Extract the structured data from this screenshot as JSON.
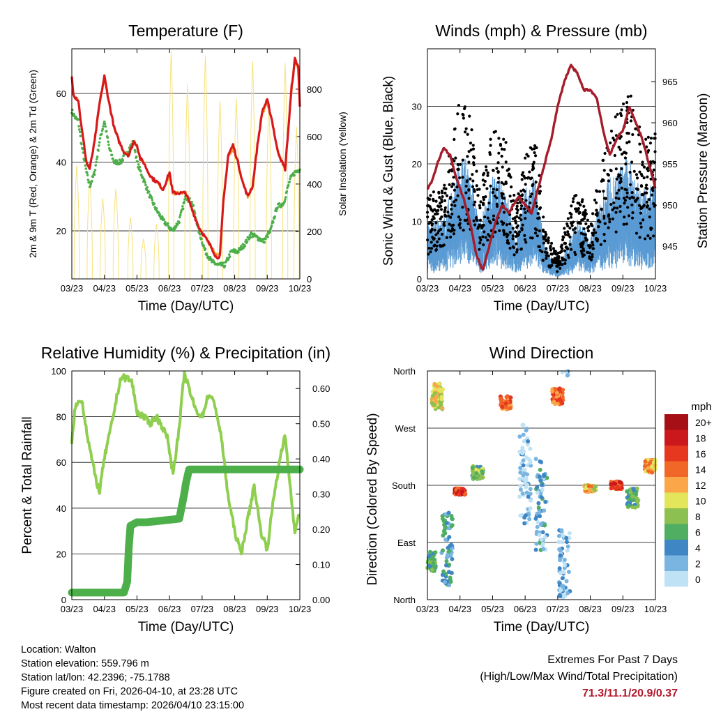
{
  "panels": {
    "temperature": {
      "title": "Temperature (F)",
      "xlabel": "Time (Day/UTC)",
      "ylabel_left": "2m & 9m T (Red, Orange) & 2m Td (Green)",
      "ylabel_right": "Solar Insolation (Yellow)"
    },
    "winds": {
      "title": "Winds (mph) & Pressure (mb)",
      "xlabel": "Time (Day/UTC)",
      "ylabel_left": "Sonic Wind & Gust (Blue, Black)",
      "ylabel_right": "Station Pressure (Maroon)"
    },
    "humidity": {
      "title": "Relative Humidity (%) & Precipitation (in)",
      "xlabel": "Time (Day/UTC)",
      "ylabel_left": "Percent & Total Rainfall"
    },
    "direction": {
      "title": "Wind Direction",
      "xlabel": "Time (Day/UTC)",
      "ylabel_left": "Direction (Colored By Speed)",
      "legend_title": "mph"
    }
  },
  "chart_data": [
    {
      "type": "line",
      "title": "Temperature (F)",
      "x_ticks": [
        "03/23",
        "04/23",
        "05/23",
        "06/23",
        "07/23",
        "08/23",
        "09/23",
        "10/23"
      ],
      "xlim": [
        0,
        7
      ],
      "y_left": {
        "ticks": [
          20,
          40,
          60
        ],
        "lim": [
          6,
          73
        ]
      },
      "y_right": {
        "ticks": [
          0,
          200,
          400,
          600,
          800
        ],
        "lim": [
          0,
          970
        ]
      },
      "series": [
        {
          "name": "2m T",
          "color": "#d7191c",
          "axis": "left",
          "x": [
            0,
            0.05,
            0.1,
            0.2,
            0.3,
            0.45,
            0.55,
            0.7,
            0.85,
            1,
            1.15,
            1.3,
            1.45,
            1.6,
            1.75,
            1.9,
            2.0,
            2.1,
            2.2,
            2.35,
            2.5,
            2.65,
            2.8,
            3.0,
            3.1,
            3.2,
            3.3,
            3.5,
            3.7,
            3.9,
            4.1,
            4.3,
            4.45,
            4.55,
            4.65,
            4.8,
            4.95,
            5.1,
            5.25,
            5.4,
            5.55,
            5.7,
            5.85,
            6.0,
            6.15,
            6.3,
            6.45,
            6.55,
            6.65,
            6.75,
            6.85,
            6.95,
            7
          ],
          "y": [
            65,
            60,
            59,
            58,
            50,
            40,
            38,
            46,
            57,
            65,
            57,
            50,
            46,
            43,
            42,
            46,
            45,
            41,
            40,
            37,
            35,
            34,
            32,
            37,
            31,
            31,
            31,
            31,
            26,
            21,
            18,
            15,
            12,
            13,
            28,
            42,
            45,
            40,
            34,
            30,
            33,
            45,
            55,
            58,
            52,
            44,
            40,
            38,
            50,
            62,
            70,
            68,
            56
          ]
        },
        {
          "name": "9m T",
          "color": "#f39c34",
          "axis": "left",
          "x": [
            0,
            0.05,
            0.1,
            0.2,
            0.3,
            0.45,
            0.55,
            0.7,
            0.85,
            1,
            1.15,
            1.3,
            1.45,
            1.6,
            1.75,
            1.9,
            2.0,
            2.1,
            2.2,
            2.35,
            2.5,
            2.65,
            2.8,
            3.0,
            3.1,
            3.2,
            3.3,
            3.5,
            3.7,
            3.9,
            4.1,
            4.3,
            4.45,
            4.55,
            4.65,
            4.8,
            4.95,
            5.1,
            5.25,
            5.4,
            5.55,
            5.7,
            5.85,
            6.0,
            6.15,
            6.3,
            6.45,
            6.55,
            6.65,
            6.75,
            6.85,
            6.95,
            7
          ],
          "y": [
            64,
            60,
            59,
            58,
            50,
            40,
            38,
            46,
            56,
            64,
            57,
            50,
            46,
            43,
            42,
            46,
            45,
            41,
            40,
            37,
            35,
            34,
            32,
            36,
            31,
            31,
            31,
            31,
            26,
            21,
            18,
            15,
            13,
            14,
            28,
            41,
            44,
            40,
            34,
            30,
            33,
            45,
            54,
            57,
            52,
            44,
            40,
            38,
            50,
            61,
            69,
            67,
            56
          ]
        },
        {
          "name": "2m Td",
          "color": "#4daf4a",
          "axis": "left",
          "x": [
            0,
            0.1,
            0.2,
            0.3,
            0.45,
            0.55,
            0.7,
            0.85,
            1,
            1.15,
            1.3,
            1.5,
            1.7,
            1.9,
            2.0,
            2.2,
            2.4,
            2.6,
            2.8,
            3.0,
            3.1,
            3.3,
            3.5,
            3.7,
            3.9,
            4.1,
            4.3,
            4.5,
            4.7,
            4.9,
            5.1,
            5.3,
            5.5,
            5.7,
            5.9,
            6.1,
            6.3,
            6.5,
            6.7,
            6.85,
            7
          ],
          "y": [
            55,
            53,
            52,
            45,
            37,
            33,
            37,
            46,
            52,
            44,
            40,
            40,
            43,
            46,
            40,
            35,
            30,
            26,
            23,
            21,
            20,
            23,
            30,
            28,
            20,
            14,
            11,
            10,
            10,
            14,
            14,
            16,
            19,
            18,
            17,
            20,
            27,
            28,
            35,
            37,
            38
          ]
        },
        {
          "name": "Solar Insolation",
          "color": "#f7e27a",
          "axis": "right",
          "peaks": [
            {
              "x": 0.15,
              "y": 480
            },
            {
              "x": 0.55,
              "y": 420
            },
            {
              "x": 0.95,
              "y": 340
            },
            {
              "x": 1.35,
              "y": 380
            },
            {
              "x": 1.8,
              "y": 260
            },
            {
              "x": 2.2,
              "y": 170
            },
            {
              "x": 2.6,
              "y": 230
            },
            {
              "x": 3.05,
              "y": 960
            },
            {
              "x": 3.55,
              "y": 820
            },
            {
              "x": 4.1,
              "y": 940
            },
            {
              "x": 4.55,
              "y": 750
            },
            {
              "x": 5.05,
              "y": 760
            },
            {
              "x": 5.55,
              "y": 920
            },
            {
              "x": 6.05,
              "y": 730
            },
            {
              "x": 6.55,
              "y": 910
            },
            {
              "x": 6.9,
              "y": 640
            }
          ]
        }
      ]
    },
    {
      "type": "scatter",
      "title": "Winds (mph) & Pressure (mb)",
      "x_ticks": [
        "03/23",
        "04/23",
        "05/23",
        "06/23",
        "07/23",
        "08/23",
        "09/23",
        "10/23"
      ],
      "xlim": [
        0,
        7
      ],
      "y_left": {
        "ticks": [
          0,
          10,
          20,
          30
        ],
        "lim": [
          0,
          40
        ]
      },
      "y_right": {
        "ticks": [
          945,
          950,
          955,
          960,
          965
        ],
        "lim": [
          941,
          969
        ]
      },
      "series": [
        {
          "name": "Gust",
          "color": "#000000",
          "envelope_x": [
            0,
            0.5,
            1,
            1.3,
            1.6,
            2.0,
            2.4,
            2.7,
            3.0,
            3.3,
            3.6,
            4.0,
            4.3,
            4.6,
            5.0,
            5.4,
            5.8,
            6.2,
            6.6,
            7
          ],
          "envelope_y": [
            13,
            15,
            29,
            26,
            14,
            24,
            22,
            12,
            20,
            24,
            8,
            4,
            10,
            15,
            9,
            20,
            26,
            31,
            22,
            24
          ]
        },
        {
          "name": "Sonic Wind",
          "color": "#5a9bd4",
          "envelope_x": [
            0,
            0.5,
            1,
            1.3,
            1.6,
            2.0,
            2.4,
            2.7,
            3.0,
            3.3,
            3.6,
            4.0,
            4.3,
            4.6,
            5.0,
            5.4,
            5.8,
            6.2,
            6.6,
            7
          ],
          "envelope_y": [
            8,
            9,
            18,
            17,
            8,
            15,
            14,
            6,
            13,
            15,
            5,
            2,
            5,
            9,
            6,
            14,
            16,
            18,
            13,
            15
          ]
        },
        {
          "name": "Station Pressure",
          "color": "#a51c2a",
          "axis": "right",
          "x": [
            0,
            0.15,
            0.3,
            0.5,
            0.7,
            0.9,
            1.1,
            1.3,
            1.5,
            1.7,
            1.9,
            2.1,
            2.3,
            2.5,
            2.8,
            3.0,
            3.2,
            3.4,
            3.6,
            3.8,
            4.0,
            4.2,
            4.4,
            4.6,
            4.8,
            5.0,
            5.2,
            5.4,
            5.6,
            5.8,
            6.0,
            6.2,
            6.4,
            6.6,
            6.8,
            7
          ],
          "y": [
            952,
            953,
            955,
            957,
            956,
            953,
            951,
            948,
            944,
            942,
            945,
            948,
            950,
            949,
            951,
            950,
            949,
            952,
            955,
            958,
            962,
            965,
            967,
            966,
            964,
            964,
            963,
            959,
            956,
            958,
            959,
            962,
            960,
            958,
            955,
            952
          ]
        }
      ]
    },
    {
      "type": "line",
      "title": "Relative Humidity (%) & Precipitation (in)",
      "x_ticks": [
        "03/23",
        "04/23",
        "05/23",
        "06/23",
        "07/23",
        "08/23",
        "09/23",
        "10/23"
      ],
      "xlim": [
        0,
        7
      ],
      "y_left": {
        "ticks": [
          0,
          20,
          40,
          60,
          80,
          100
        ],
        "lim": [
          0,
          100
        ]
      },
      "y_right": {
        "ticks": [
          "0.00",
          "0.10",
          "0.20",
          "0.30",
          "0.40",
          "0.50",
          "0.60"
        ],
        "lim": [
          0,
          0.65
        ]
      },
      "series": [
        {
          "name": "Relative Humidity",
          "color": "#8fcf4f",
          "axis": "left",
          "x": [
            0,
            0.1,
            0.3,
            0.5,
            0.7,
            0.85,
            1.0,
            1.2,
            1.4,
            1.5,
            1.7,
            1.85,
            2.0,
            2.2,
            2.4,
            2.6,
            2.8,
            2.95,
            3.1,
            3.3,
            3.45,
            3.6,
            3.8,
            4.0,
            4.2,
            4.4,
            4.6,
            4.8,
            5.0,
            5.2,
            5.4,
            5.6,
            5.8,
            6.0,
            6.2,
            6.4,
            6.55,
            6.7,
            6.85,
            7
          ],
          "y": [
            68,
            84,
            88,
            70,
            55,
            47,
            62,
            75,
            90,
            97,
            97,
            95,
            82,
            80,
            77,
            80,
            75,
            70,
            55,
            75,
            99,
            92,
            83,
            80,
            90,
            85,
            70,
            45,
            30,
            20,
            35,
            50,
            30,
            22,
            45,
            62,
            72,
            50,
            30,
            38
          ]
        },
        {
          "name": "Total Precipitation",
          "color": "#4daf4a",
          "axis": "right",
          "x": [
            0,
            1.6,
            1.7,
            1.75,
            1.8,
            2.0,
            2.3,
            3.3,
            3.45,
            3.5,
            3.6,
            3.7,
            7
          ],
          "y": [
            0.02,
            0.02,
            0.05,
            0.15,
            0.21,
            0.22,
            0.22,
            0.23,
            0.3,
            0.33,
            0.37,
            0.37,
            0.37
          ]
        }
      ]
    },
    {
      "type": "scatter",
      "title": "Wind Direction",
      "x_ticks": [
        "03/23",
        "04/23",
        "05/23",
        "06/23",
        "07/23",
        "08/23",
        "09/23",
        "10/23"
      ],
      "xlim": [
        0,
        7
      ],
      "y_ticks": [
        "North",
        "East",
        "South",
        "West",
        "North"
      ],
      "y_lim_deg": [
        0,
        360
      ],
      "colorbar": {
        "labels": [
          "20+",
          "18",
          "16",
          "14",
          "12",
          "10",
          "8",
          "6",
          "4",
          "2",
          "0"
        ],
        "colors": [
          "#a50f15",
          "#cb181d",
          "#e6371f",
          "#f16727",
          "#fca64a",
          "#e3e55a",
          "#8cc152",
          "#4fae62",
          "#3f86c4",
          "#79b5e0",
          "#bfe2f5"
        ]
      },
      "clusters": [
        {
          "x": 0.1,
          "dir": 60,
          "spread": 30,
          "speed": 6
        },
        {
          "x": 0.3,
          "dir": 320,
          "spread": 40,
          "speed": 10
        },
        {
          "x": 0.6,
          "dir": 80,
          "spread": 120,
          "speed": 4
        },
        {
          "x": 1.0,
          "dir": 170,
          "spread": 10,
          "speed": 17
        },
        {
          "x": 1.55,
          "dir": 200,
          "spread": 20,
          "speed": 7
        },
        {
          "x": 2.4,
          "dir": 310,
          "spread": 20,
          "speed": 14
        },
        {
          "x": 3.0,
          "dir": 200,
          "spread": 160,
          "speed": 1
        },
        {
          "x": 3.5,
          "dir": 150,
          "spread": 150,
          "speed": 3
        },
        {
          "x": 4.0,
          "dir": 320,
          "spread": 25,
          "speed": 14
        },
        {
          "x": 4.2,
          "dir": 50,
          "spread": 120,
          "speed": 2
        },
        {
          "x": 5.0,
          "dir": 175,
          "spread": 10,
          "speed": 11
        },
        {
          "x": 5.8,
          "dir": 180,
          "spread": 12,
          "speed": 16
        },
        {
          "x": 6.3,
          "dir": 160,
          "spread": 30,
          "speed": 6
        },
        {
          "x": 6.85,
          "dir": 210,
          "spread": 20,
          "speed": 12
        }
      ]
    }
  ],
  "footer": {
    "location": "Location: Walton",
    "elevation": "Station elevation: 559.796 m",
    "latlon": "Station lat/lon: 42.2396; -75.1788",
    "created": "Figure created on Fri, 2026-04-10, at 23:28 UTC",
    "recent": "Most recent data timestamp: 2026/04/10 23:15:00",
    "extremes_title": "Extremes For Past 7 Days",
    "extremes_sub": "(High/Low/Max Wind/Total Precipitation)",
    "extremes_values": "71.3/11.1/20.9/0.37"
  }
}
